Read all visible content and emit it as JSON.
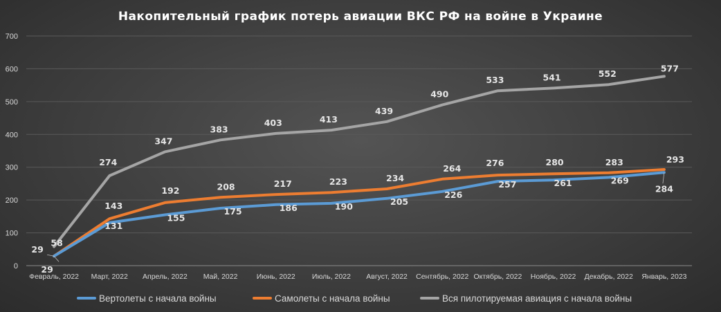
{
  "chart_data": {
    "type": "line",
    "title": "Накопительный график потерь авиации ВКС РФ на войне в Украине",
    "categories": [
      "Февраль, 2022",
      "Март, 2022",
      "Апрель, 2022",
      "Май, 2022",
      "Июнь, 2022",
      "Июль, 2022",
      "Август, 2022",
      "Сентябрь, 2022",
      "Октябрь, 2022",
      "Ноябрь, 2022",
      "Декабрь, 2022",
      "Январь, 2023"
    ],
    "ylim": [
      0,
      700
    ],
    "yticks": [
      "0",
      "100",
      "200",
      "300",
      "400",
      "500",
      "600",
      "700"
    ],
    "grid": true,
    "legend_position": "bottom",
    "series": [
      {
        "name": "Вертолеты с начала войны",
        "color": "#5b9bd5",
        "values": [
          29,
          131,
          155,
          175,
          186,
          190,
          205,
          226,
          257,
          261,
          269,
          284
        ]
      },
      {
        "name": "Самолеты с начала войны",
        "color": "#ed7d31",
        "values": [
          29,
          143,
          192,
          208,
          217,
          223,
          234,
          264,
          276,
          280,
          283,
          293
        ]
      },
      {
        "name": "Вся пилотируемая авиация с начала войны",
        "color": "#a5a5a5",
        "values": [
          58,
          274,
          347,
          383,
          403,
          413,
          439,
          490,
          533,
          541,
          552,
          577
        ]
      }
    ]
  }
}
